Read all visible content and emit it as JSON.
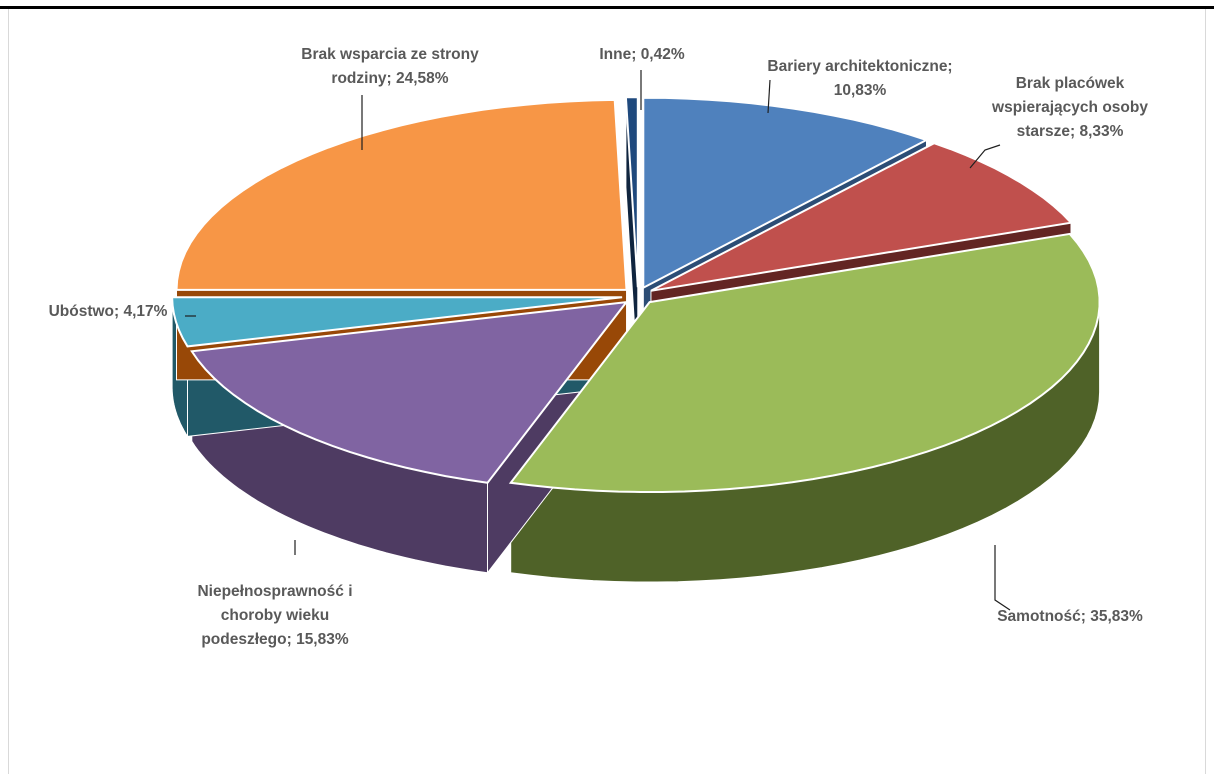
{
  "chart_data": {
    "type": "pie",
    "style": "3d-exploded",
    "title": "",
    "slices": [
      {
        "name": "Bariery architektoniczne",
        "value": 10.83,
        "label_lines": [
          "Bariery architektoniczne;",
          "10,83%"
        ],
        "color": "#4f81bd",
        "side": "#2c4d75",
        "id": "bariery"
      },
      {
        "name": "Brak placówek wspierających osoby starsze",
        "value": 8.33,
        "label_lines": [
          "Brak placówek",
          "wspierających osoby",
          "starsze; 8,33%"
        ],
        "color": "#c0504d",
        "side": "#632523",
        "id": "brak-placowek"
      },
      {
        "name": "Samotność",
        "value": 35.83,
        "label_lines": [
          "Samotność; 35,83%"
        ],
        "color": "#9bbb59",
        "side": "#4f6228",
        "id": "samotnosc"
      },
      {
        "name": "Niepełnosprawność i choroby wieku podeszłego",
        "value": 15.83,
        "label_lines": [
          "Niepełnosprawność  i",
          "choroby wieku",
          "podeszłego; 15,83%"
        ],
        "color": "#8064a2",
        "side": "#4e3b62",
        "id": "niepelnosprawnosc"
      },
      {
        "name": "Ubóstwo",
        "value": 4.17,
        "label_lines": [
          "Ubóstwo; 4,17%"
        ],
        "color": "#4bacc6",
        "side": "#215968",
        "id": "ubostwo"
      },
      {
        "name": "Brak wsparcia ze strony rodziny",
        "value": 24.58,
        "label_lines": [
          "Brak wsparcia ze strony",
          "rodziny; 24,58%"
        ],
        "color": "#f79646",
        "side": "#984807",
        "id": "brak-wsparcia"
      },
      {
        "name": "Inne",
        "value": 0.42,
        "label_lines": [
          "Inne; 0,42%"
        ],
        "color": "#1f497d",
        "side": "#10253f",
        "id": "inne"
      }
    ]
  }
}
